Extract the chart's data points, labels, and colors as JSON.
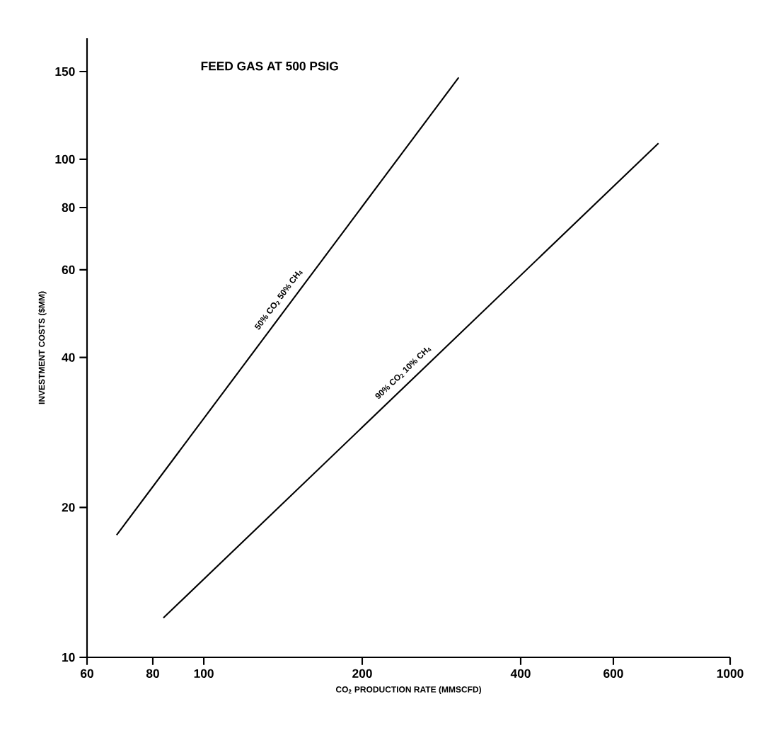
{
  "chart_data": {
    "type": "line",
    "xlabel": "CO$_{2}$ PRODUCTION RATE (MMSCFD)",
    "ylabel": "INVESTMENT COSTS ($MM)",
    "annotations": [
      "FEED GAS AT 500 PSIG"
    ],
    "log": "xy",
    "xlim": [
      60,
      1000
    ],
    "ylim": [
      10,
      175
    ],
    "xticks": [
      60,
      80,
      100,
      200,
      400,
      600,
      1000
    ],
    "yticks": [
      10,
      20,
      40,
      60,
      80,
      100,
      150
    ],
    "grid": false,
    "legend": false,
    "marker": "none",
    "line_style": "solid",
    "series": [
      {
        "name": "50% CO$_{2}$  50% CH$_{4}$",
        "color": "#000000",
        "x": [
          68.3,
          305
        ],
        "values": [
          17.6,
          146
        ]
      },
      {
        "name": "90% CO$_{2}$  10% CH$_{4}$",
        "color": "#000000",
        "x": [
          83.8,
          731
        ],
        "values": [
          12.0,
          107.7
        ]
      }
    ]
  }
}
